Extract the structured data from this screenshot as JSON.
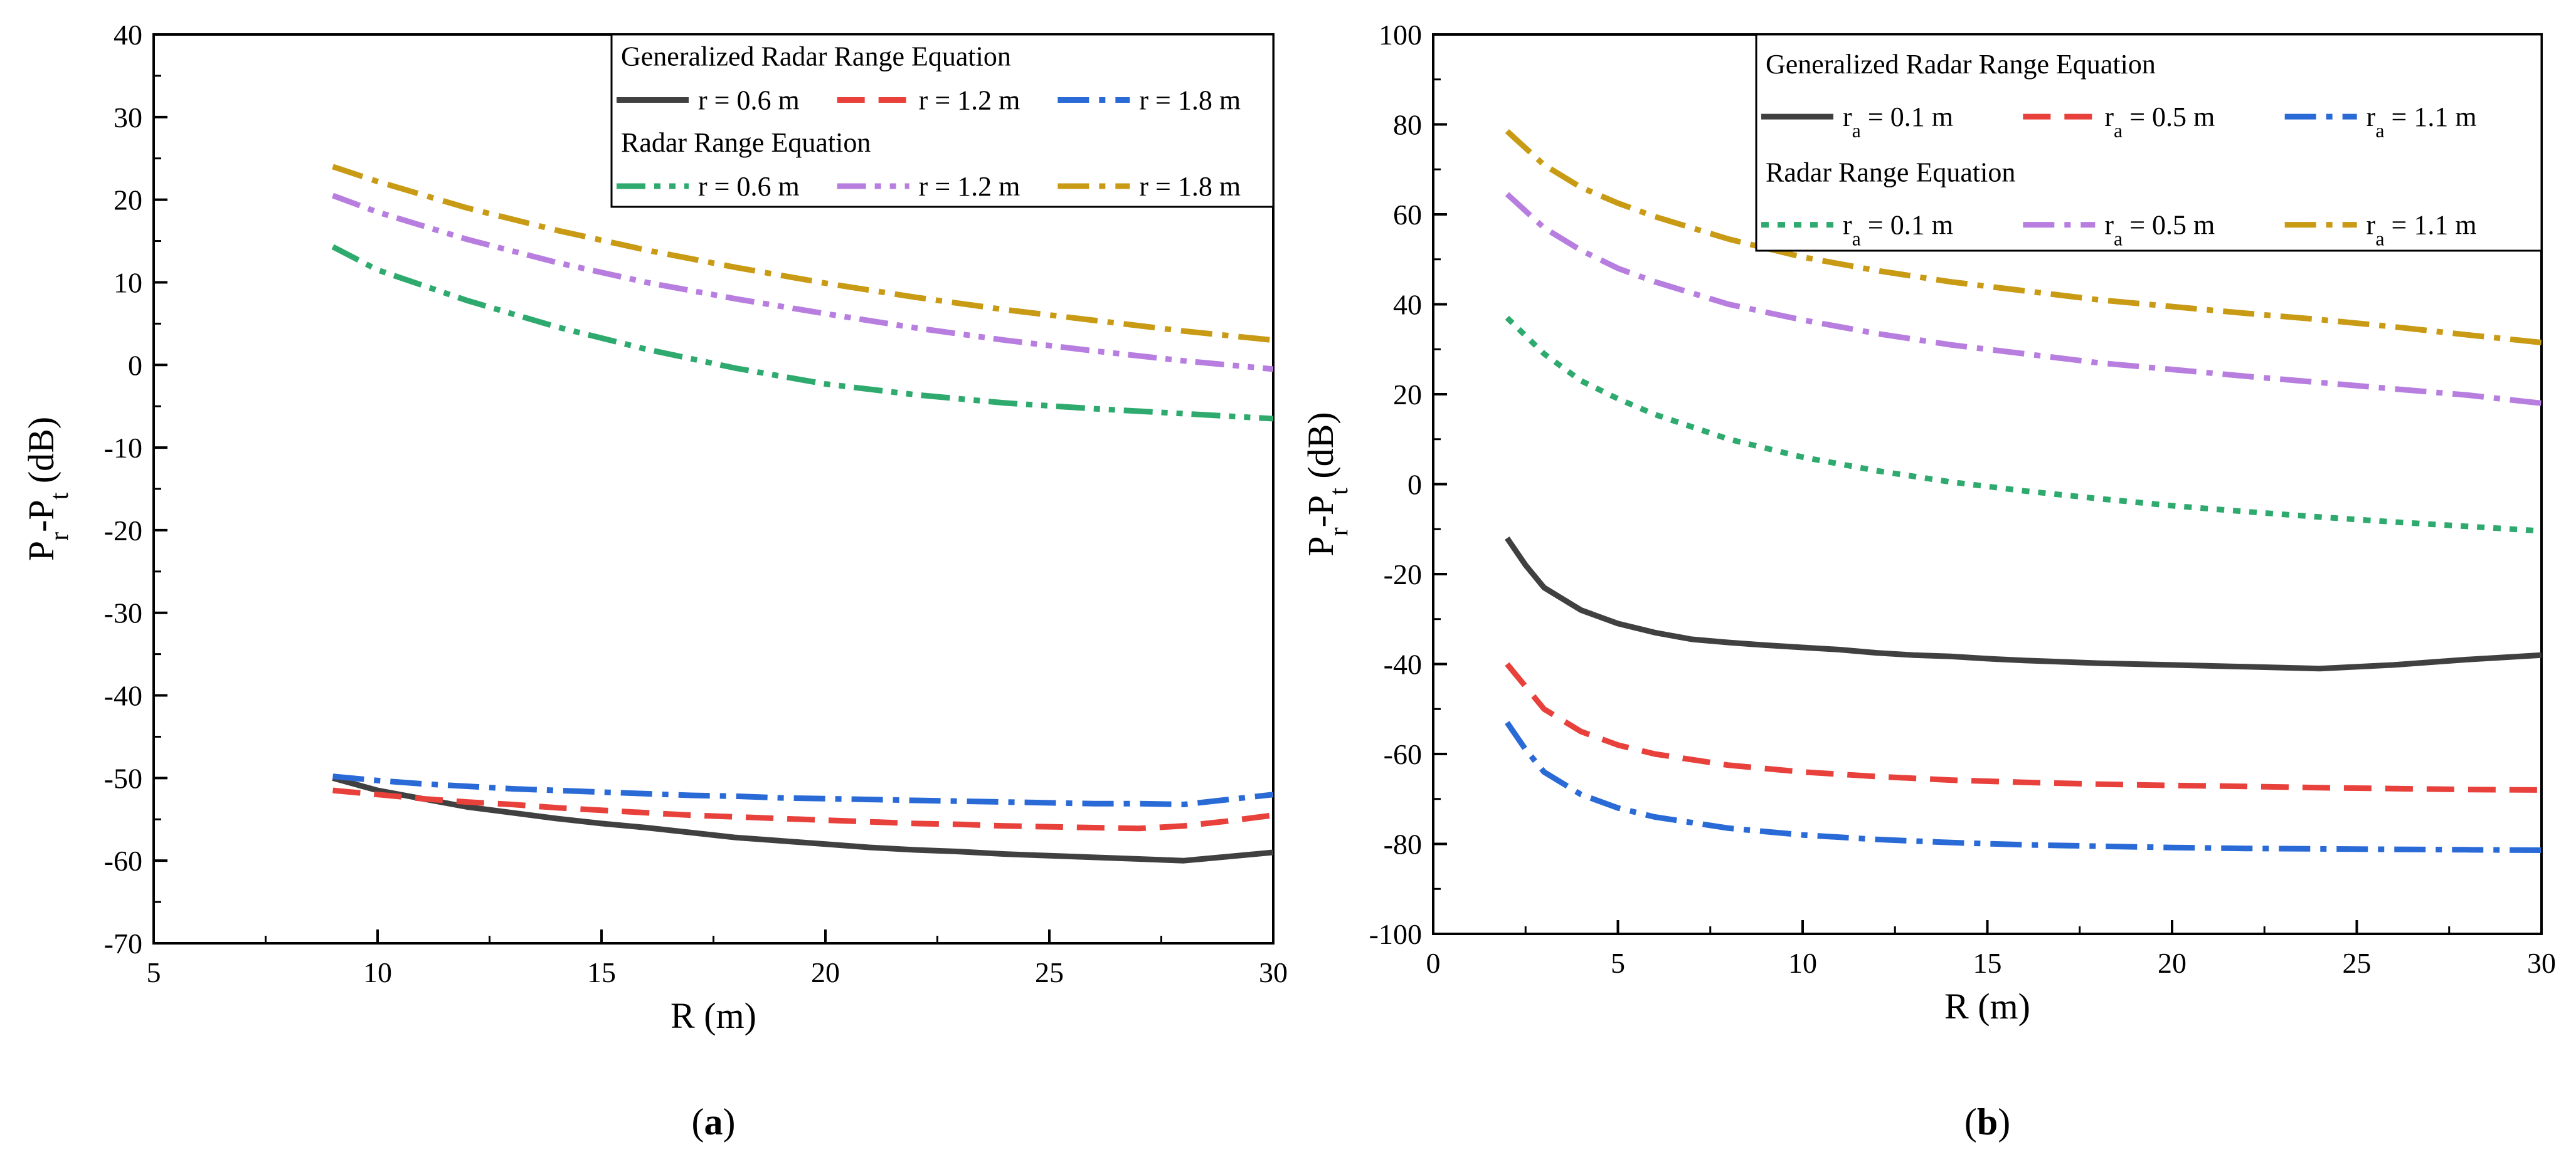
{
  "chart_data": [
    {
      "type": "line",
      "panel_label": "(a)",
      "panel_letter": "a",
      "xlabel": "R (m)",
      "ylabel_main": "P",
      "ylabel_sub1": "r",
      "ylabel_mid": "-P",
      "ylabel_sub2": "t",
      "ylabel_tail": " (dB)",
      "xlim": [
        5,
        30
      ],
      "ylim": [
        -70,
        40
      ],
      "xticks": [
        5,
        10,
        15,
        20,
        25,
        30
      ],
      "yticks": [
        -70,
        -60,
        -50,
        -40,
        -30,
        -20,
        -10,
        0,
        10,
        20,
        30,
        40
      ],
      "legend": {
        "group1_title": "Generalized Radar Range Equation",
        "group2_title": "Radar Range Equation",
        "param": "r",
        "sub": ""
      },
      "series": [
        {
          "name": "r = 0.6 m",
          "group": "Generalized Radar Range Equation",
          "param_value": "0.6",
          "style": "solid",
          "color": "#404040",
          "x": [
            9,
            10,
            11,
            12,
            13,
            14,
            15,
            16,
            17,
            18,
            19,
            20,
            21,
            22,
            23,
            24,
            25,
            26,
            27,
            28,
            29,
            30
          ],
          "y": [
            -50,
            -51.5,
            -52.5,
            -53.5,
            -54.2,
            -54.9,
            -55.5,
            -56,
            -56.6,
            -57.2,
            -57.6,
            -58,
            -58.4,
            -58.7,
            -58.9,
            -59.2,
            -59.4,
            -59.6,
            -59.8,
            -60,
            -59.5,
            -59
          ]
        },
        {
          "name": "r = 1.2 m",
          "group": "Generalized Radar Range Equation",
          "param_value": "1.2",
          "style": "dash",
          "color": "#e8413c",
          "x": [
            9,
            10,
            11,
            12,
            13,
            14,
            15,
            16,
            17,
            18,
            19,
            20,
            21,
            22,
            23,
            24,
            25,
            26,
            27,
            28,
            29,
            30
          ],
          "y": [
            -51.5,
            -52,
            -52.5,
            -52.9,
            -53.2,
            -53.6,
            -53.9,
            -54.2,
            -54.5,
            -54.7,
            -54.9,
            -55.1,
            -55.3,
            -55.5,
            -55.6,
            -55.8,
            -55.9,
            -56,
            -56.1,
            -55.8,
            -55.2,
            -54.5
          ]
        },
        {
          "name": "r = 1.8 m",
          "group": "Generalized Radar Range Equation",
          "param_value": "1.8",
          "style": "dashdot",
          "color": "#2a6ad6",
          "x": [
            9,
            10,
            11,
            12,
            13,
            14,
            15,
            16,
            17,
            18,
            19,
            20,
            21,
            22,
            23,
            24,
            25,
            26,
            27,
            28,
            29,
            30
          ],
          "y": [
            -49.8,
            -50.3,
            -50.7,
            -51,
            -51.3,
            -51.5,
            -51.7,
            -51.9,
            -52.1,
            -52.2,
            -52.4,
            -52.5,
            -52.6,
            -52.7,
            -52.8,
            -52.9,
            -53,
            -53.1,
            -53.1,
            -53.2,
            -52.6,
            -52
          ]
        },
        {
          "name": "r = 0.6 m",
          "group": "Radar Range Equation",
          "param_value": "0.6",
          "style": "dashdotdot",
          "color": "#2eaa6e",
          "x": [
            9,
            10,
            12,
            14,
            16,
            18,
            20,
            22,
            24,
            26,
            28,
            30
          ],
          "y": [
            14.3,
            11.5,
            7.8,
            4.6,
            1.9,
            -0.4,
            -2.3,
            -3.6,
            -4.6,
            -5.3,
            -5.9,
            -6.5
          ]
        },
        {
          "name": "r = 1.2 m",
          "group": "Radar Range Equation",
          "param_value": "1.2",
          "style": "dashdotdot",
          "color": "#b77ee0",
          "x": [
            9,
            10,
            12,
            14,
            16,
            18,
            20,
            22,
            24,
            26,
            28,
            30
          ],
          "y": [
            20.5,
            18.5,
            15.2,
            12.4,
            10,
            8,
            6.2,
            4.5,
            3,
            1.7,
            0.5,
            -0.5
          ]
        },
        {
          "name": "r = 1.8 m",
          "group": "Radar Range Equation",
          "param_value": "1.8",
          "style": "dashdot",
          "color": "#c99a14",
          "x": [
            9,
            10,
            12,
            14,
            16,
            18,
            20,
            22,
            24,
            26,
            28,
            30
          ],
          "y": [
            24,
            22.2,
            19,
            16.3,
            13.9,
            11.8,
            9.9,
            8.2,
            6.7,
            5.4,
            4.1,
            3
          ]
        }
      ]
    },
    {
      "type": "line",
      "panel_label": "(b)",
      "panel_letter": "b",
      "xlabel": "R (m)",
      "ylabel_main": "P",
      "ylabel_sub1": "r",
      "ylabel_mid": "-P",
      "ylabel_sub2": "t",
      "ylabel_tail": " (dB)",
      "xlim": [
        0,
        30
      ],
      "ylim": [
        -100,
        100
      ],
      "xticks": [
        0,
        5,
        10,
        15,
        20,
        25,
        30
      ],
      "yticks": [
        -100,
        -80,
        -60,
        -40,
        -20,
        0,
        20,
        40,
        60,
        80,
        100
      ],
      "legend": {
        "group1_title": "Generalized Radar Range Equation",
        "group2_title": "Radar Range Equation",
        "param": "r",
        "sub": "a"
      },
      "series": [
        {
          "name": "ra = 0.1 m",
          "group": "Generalized Radar Range Equation",
          "param_value": "0.1",
          "style": "solid",
          "color": "#404040",
          "x": [
            2,
            2.5,
            3,
            4,
            5,
            6,
            7,
            8,
            9,
            10,
            11,
            12,
            13,
            14,
            15,
            16,
            18,
            20,
            22,
            24,
            26,
            28,
            30
          ],
          "y": [
            -12,
            -18,
            -23,
            -28,
            -31,
            -33,
            -34.5,
            -35.2,
            -35.8,
            -36.3,
            -36.8,
            -37.5,
            -38,
            -38.3,
            -38.8,
            -39.2,
            -39.8,
            -40.2,
            -40.6,
            -41,
            -40.2,
            -39,
            -38
          ]
        },
        {
          "name": "ra = 0.5 m",
          "group": "Generalized Radar Range Equation",
          "param_value": "0.5",
          "style": "dash",
          "color": "#e8413c",
          "x": [
            2,
            2.5,
            3,
            4,
            5,
            6,
            8,
            10,
            12,
            14,
            16,
            18,
            20,
            22,
            24,
            26,
            28,
            30
          ],
          "y": [
            -40,
            -45,
            -50,
            -55,
            -58,
            -60,
            -62.5,
            -64,
            -65,
            -65.8,
            -66.3,
            -66.7,
            -67,
            -67.2,
            -67.5,
            -67.7,
            -67.9,
            -68
          ]
        },
        {
          "name": "ra = 1.1 m",
          "group": "Generalized Radar Range Equation",
          "param_value": "1.1",
          "style": "dashdot",
          "color": "#2a6ad6",
          "x": [
            2,
            2.5,
            3,
            4,
            5,
            6,
            8,
            10,
            12,
            14,
            16,
            18,
            20,
            22,
            24,
            26,
            28,
            30
          ],
          "y": [
            -53,
            -59,
            -64,
            -69,
            -72,
            -74,
            -76.5,
            -78,
            -79,
            -79.7,
            -80.2,
            -80.5,
            -80.8,
            -81,
            -81.1,
            -81.2,
            -81.3,
            -81.4
          ]
        },
        {
          "name": "ra = 0.1 m",
          "group": "Radar Range Equation",
          "param_value": "0.1",
          "style": "dot",
          "color": "#2eaa6e",
          "x": [
            2,
            3,
            4,
            5,
            6,
            8,
            10,
            12,
            14,
            16,
            18,
            20,
            22,
            24,
            26,
            28,
            30
          ],
          "y": [
            37,
            29,
            23,
            19,
            15.5,
            10,
            6,
            3,
            0.5,
            -1.5,
            -3.2,
            -4.8,
            -6.1,
            -7.3,
            -8.4,
            -9.4,
            -10.4
          ]
        },
        {
          "name": "ra = 0.5 m",
          "group": "Radar Range Equation",
          "param_value": "0.5",
          "style": "dashdot",
          "color": "#b77ee0",
          "x": [
            2,
            3,
            4,
            5,
            6,
            8,
            10,
            12,
            14,
            16,
            18,
            20,
            22,
            24,
            26,
            28,
            30
          ],
          "y": [
            64.5,
            57,
            52,
            48,
            45,
            40,
            36.5,
            33.5,
            31,
            29,
            27,
            25.5,
            24,
            22.6,
            21.2,
            19.8,
            18
          ]
        },
        {
          "name": "ra = 1.1 m",
          "group": "Radar Range Equation",
          "param_value": "1.1",
          "style": "dashdot",
          "color": "#c99a14",
          "x": [
            2,
            3,
            4,
            5,
            6,
            8,
            10,
            12,
            14,
            16,
            18,
            20,
            22,
            24,
            26,
            28,
            30
          ],
          "y": [
            78.5,
            71,
            66,
            62.5,
            59.5,
            54.5,
            50.5,
            47.5,
            45,
            43,
            41,
            39.5,
            38,
            36.6,
            35,
            33.2,
            31.5
          ]
        }
      ]
    }
  ]
}
